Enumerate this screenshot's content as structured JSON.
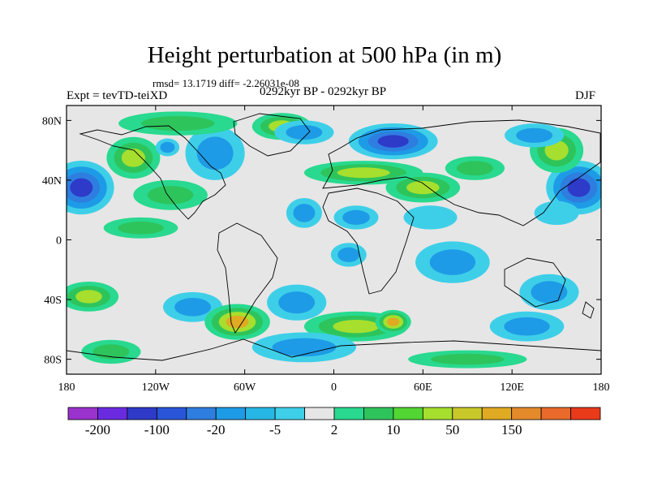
{
  "title": "Height perturbation at 500 hPa (in m)",
  "subtitle_stats": "rmsd= 13.1719 diff= -2.26031e-08",
  "left_label": "Expt = tevTD-teiXD",
  "center_label": "0292kyr BP - 0292kyr BP",
  "right_label": "DJF",
  "chart_data": {
    "type": "heatmap",
    "title": "Height perturbation at 500 hPa (in m)",
    "xlabel": "",
    "ylabel": "",
    "xlim": [
      -180,
      180
    ],
    "ylim": [
      -90,
      90
    ],
    "x_ticks": [
      {
        "value": -180,
        "label": "180"
      },
      {
        "value": -120,
        "label": "120W"
      },
      {
        "value": -60,
        "label": "60W"
      },
      {
        "value": 0,
        "label": "0"
      },
      {
        "value": 60,
        "label": "60E"
      },
      {
        "value": 120,
        "label": "120E"
      },
      {
        "value": 180,
        "label": "180"
      }
    ],
    "y_ticks": [
      {
        "value": 80,
        "label": "80N"
      },
      {
        "value": 40,
        "label": "40N"
      },
      {
        "value": 0,
        "label": "0"
      },
      {
        "value": -40,
        "label": "40S"
      },
      {
        "value": -80,
        "label": "80S"
      }
    ],
    "colorbar": {
      "colors": [
        "#9a32cd",
        "#6a2be0",
        "#2e3ac8",
        "#2956d8",
        "#2e7ee0",
        "#1e9be6",
        "#27b7e6",
        "#3ecfe8",
        "#e6e6e6",
        "#28d98f",
        "#2ec45c",
        "#52d633",
        "#a6df2e",
        "#c9c82a",
        "#e0aa22",
        "#e58a2a",
        "#e96a2a",
        "#e93a1a"
      ],
      "labels": [
        {
          "boundary": 1,
          "text": "-200"
        },
        {
          "boundary": 3,
          "text": "-100"
        },
        {
          "boundary": 5,
          "text": "-20"
        },
        {
          "boundary": 7,
          "text": "-5"
        },
        {
          "boundary": 9,
          "text": "2"
        },
        {
          "boundary": 11,
          "text": "10"
        },
        {
          "boundary": 13,
          "text": "50"
        },
        {
          "boundary": 15,
          "text": "150"
        }
      ]
    },
    "features": [
      {
        "lon": -170,
        "lat": 35,
        "value": -100,
        "rlon": 22,
        "rlat": 18
      },
      {
        "lon": 165,
        "lat": 35,
        "value": -100,
        "rlon": 22,
        "rlat": 18
      },
      {
        "lon": -35,
        "lat": 76,
        "value": 50,
        "rlon": 20,
        "rlat": 9
      },
      {
        "lon": -135,
        "lat": 55,
        "value": 50,
        "rlon": 18,
        "rlat": 14
      },
      {
        "lon": -112,
        "lat": 62,
        "value": -20,
        "rlon": 8,
        "rlat": 6
      },
      {
        "lon": -110,
        "lat": 30,
        "value": 10,
        "rlon": 25,
        "rlat": 10
      },
      {
        "lon": -80,
        "lat": 58,
        "value": -20,
        "rlon": 20,
        "rlat": 18
      },
      {
        "lon": -20,
        "lat": 72,
        "value": -10,
        "rlon": 20,
        "rlat": 8
      },
      {
        "lon": 40,
        "lat": 66,
        "value": -100,
        "rlon": 30,
        "rlat": 12
      },
      {
        "lon": 20,
        "lat": 45,
        "value": 30,
        "rlon": 40,
        "rlat": 8
      },
      {
        "lon": 60,
        "lat": 35,
        "value": 50,
        "rlon": 25,
        "rlat": 10
      },
      {
        "lon": 95,
        "lat": 48,
        "value": 10,
        "rlon": 20,
        "rlat": 8
      },
      {
        "lon": 150,
        "lat": 60,
        "value": 50,
        "rlon": 18,
        "rlat": 15
      },
      {
        "lon": 135,
        "lat": 70,
        "value": -20,
        "rlon": 20,
        "rlat": 8
      },
      {
        "lon": -105,
        "lat": 78,
        "value": 10,
        "rlon": 40,
        "rlat": 8
      },
      {
        "lon": -20,
        "lat": 18,
        "value": -10,
        "rlon": 12,
        "rlat": 10
      },
      {
        "lon": 15,
        "lat": 15,
        "value": -10,
        "rlon": 15,
        "rlat": 8
      },
      {
        "lon": 65,
        "lat": 15,
        "value": -5,
        "rlon": 18,
        "rlat": 8
      },
      {
        "lon": 150,
        "lat": 18,
        "value": -5,
        "rlon": 15,
        "rlat": 8
      },
      {
        "lon": -130,
        "lat": 8,
        "value": 10,
        "rlon": 25,
        "rlat": 7
      },
      {
        "lon": 80,
        "lat": -15,
        "value": -20,
        "rlon": 25,
        "rlat": 14
      },
      {
        "lon": 10,
        "lat": -10,
        "value": -10,
        "rlon": 12,
        "rlat": 8
      },
      {
        "lon": -25,
        "lat": -42,
        "value": -20,
        "rlon": 20,
        "rlat": 12
      },
      {
        "lon": 145,
        "lat": -35,
        "value": -10,
        "rlon": 20,
        "rlat": 12
      },
      {
        "lon": -165,
        "lat": -38,
        "value": 30,
        "rlon": 20,
        "rlat": 10
      },
      {
        "lon": -95,
        "lat": -45,
        "value": -10,
        "rlon": 20,
        "rlat": 10
      },
      {
        "lon": -65,
        "lat": -55,
        "value": 100,
        "rlon": 22,
        "rlat": 12
      },
      {
        "lon": 15,
        "lat": -58,
        "value": 30,
        "rlon": 35,
        "rlat": 10
      },
      {
        "lon": 40,
        "lat": -55,
        "value": 100,
        "rlon": 12,
        "rlat": 8
      },
      {
        "lon": 130,
        "lat": -58,
        "value": -10,
        "rlon": 25,
        "rlat": 10
      },
      {
        "lon": -20,
        "lat": -72,
        "value": -10,
        "rlon": 35,
        "rlat": 10
      },
      {
        "lon": 90,
        "lat": -80,
        "value": 10,
        "rlon": 40,
        "rlat": 6
      },
      {
        "lon": -150,
        "lat": -75,
        "value": 10,
        "rlon": 20,
        "rlat": 8
      }
    ]
  }
}
